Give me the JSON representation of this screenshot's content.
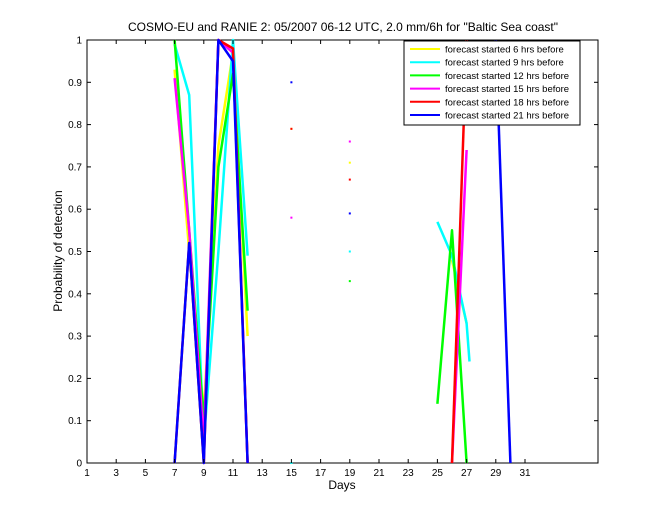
{
  "chart_data": {
    "type": "line",
    "title": "COSMO-EU and RANIE 2: 05/2007 06-12 UTC, 2.0 mm/6h for \"Baltic Sea coast\"",
    "xlabel": "Days",
    "ylabel": "Probability of detection",
    "xlim": [
      1,
      36
    ],
    "ylim": [
      0,
      1
    ],
    "xticks": [
      1,
      3,
      5,
      7,
      9,
      11,
      13,
      15,
      17,
      19,
      21,
      23,
      25,
      27,
      29,
      31
    ],
    "xtick_labels": [
      "1",
      "3",
      "5",
      "7",
      "9",
      "11",
      "13",
      "15",
      "17",
      "19",
      "21",
      "23",
      "25",
      "27",
      "29",
      "31"
    ],
    "yticks": [
      0,
      0.1,
      0.2,
      0.3,
      0.4,
      0.5,
      0.6,
      0.7,
      0.8,
      0.9,
      1
    ],
    "ytick_labels": [
      "0",
      "0.1",
      "0.2",
      "0.3",
      "0.4",
      "0.5",
      "0.6",
      "0.7",
      "0.8",
      "0.9",
      "1"
    ],
    "grid": false,
    "legend_position": "top-right",
    "series": [
      {
        "name": "forecast started 6 hrs before",
        "color": "#ffff00",
        "segments": [
          [
            [
              7,
              0.93
            ],
            [
              8,
              0.5
            ],
            [
              9,
              0.12
            ],
            [
              10,
              0.75
            ],
            [
              11,
              0.97
            ],
            [
              12,
              0.3
            ]
          ],
          [
            [
              26,
              0.48
            ],
            [
              27,
              0.33
            ]
          ]
        ],
        "points": [
          [
            15,
            0.79
          ],
          [
            19,
            0.71
          ]
        ]
      },
      {
        "name": "forecast started 9 hrs before",
        "color": "#00ffff",
        "segments": [
          [
            [
              7,
              0.99
            ],
            [
              8,
              0.87
            ],
            [
              9,
              0.05
            ],
            [
              10,
              0.5
            ],
            [
              11,
              1.0
            ],
            [
              12,
              0.49
            ]
          ],
          [
            [
              25,
              0.57
            ],
            [
              26,
              0.49
            ],
            [
              27,
              0.33
            ],
            [
              27.2,
              0.24
            ]
          ]
        ],
        "points": [
          [
            15,
            0.0
          ],
          [
            19,
            0.5
          ]
        ]
      },
      {
        "name": "forecast started 12 hrs before",
        "color": "#00ff00",
        "segments": [
          [
            [
              7,
              1.0
            ],
            [
              8,
              0.55
            ],
            [
              9,
              0.1
            ],
            [
              10,
              0.7
            ],
            [
              11,
              0.92
            ],
            [
              12,
              0.36
            ]
          ],
          [
            [
              25,
              0.14
            ],
            [
              26,
              0.55
            ],
            [
              27,
              0.0
            ]
          ]
        ],
        "points": [
          [
            19,
            0.43
          ]
        ]
      },
      {
        "name": "forecast started 15 hrs before",
        "color": "#ff00ff",
        "segments": [
          [
            [
              7,
              0.91
            ],
            [
              8,
              0.55
            ],
            [
              9,
              0.05
            ],
            [
              10,
              1.0
            ],
            [
              11,
              0.97
            ],
            [
              12,
              0.0
            ]
          ],
          [
            [
              26,
              0.0
            ],
            [
              27,
              0.74
            ]
          ]
        ],
        "points": [
          [
            15,
            0.58
          ],
          [
            19,
            0.76
          ]
        ]
      },
      {
        "name": "forecast started 18 hrs before",
        "color": "#ff0000",
        "segments": [
          [
            [
              7,
              0.0
            ],
            [
              8,
              0.52
            ],
            [
              9,
              0.0
            ],
            [
              10,
              1.0
            ],
            [
              11,
              0.98
            ],
            [
              12,
              0.0
            ]
          ],
          [
            [
              26,
              0.0
            ],
            [
              27,
              1.0
            ]
          ]
        ],
        "points": [
          [
            15,
            0.79
          ],
          [
            19,
            0.67
          ]
        ]
      },
      {
        "name": "forecast started 21 hrs before",
        "color": "#0000ff",
        "segments": [
          [
            [
              7,
              0.0
            ],
            [
              8,
              0.52
            ],
            [
              9,
              0.0
            ],
            [
              10,
              1.0
            ],
            [
              11,
              0.95
            ],
            [
              12,
              0.0
            ]
          ],
          [
            [
              29,
              1.0
            ],
            [
              30,
              0.0
            ]
          ]
        ],
        "points": [
          [
            15,
            0.9
          ],
          [
            19,
            0.59
          ]
        ]
      }
    ]
  }
}
